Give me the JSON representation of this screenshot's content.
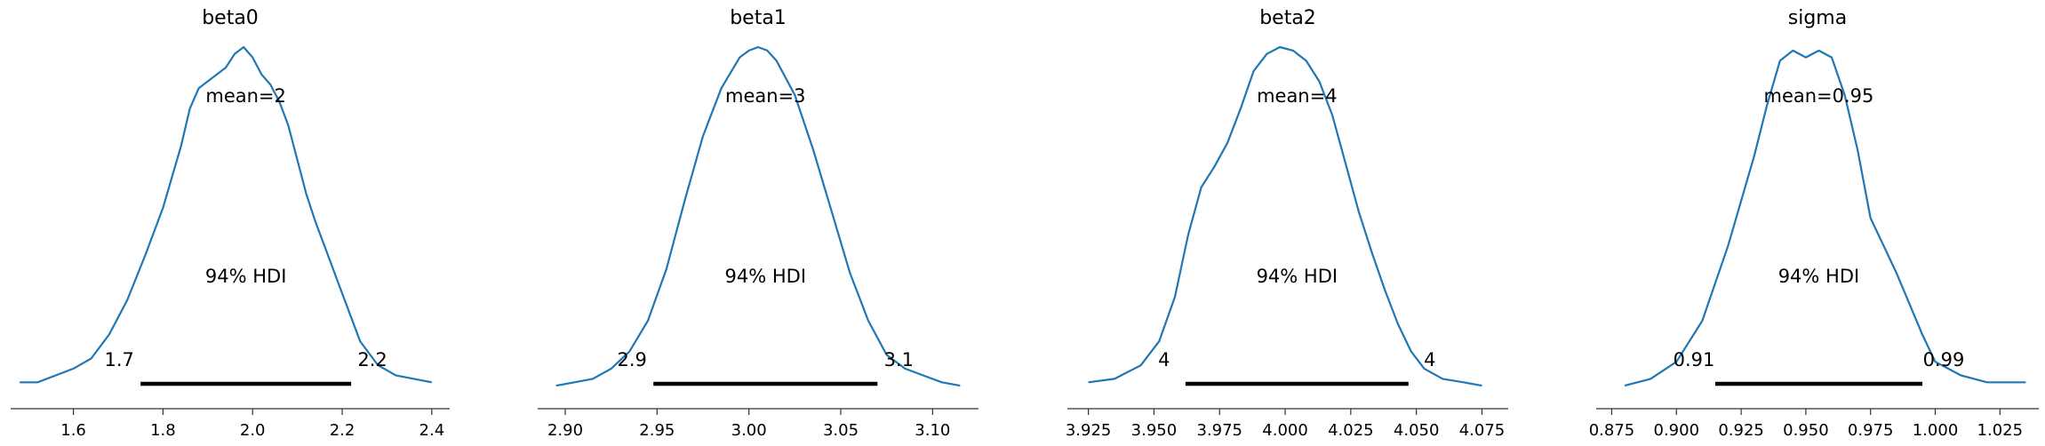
{
  "colors": {
    "density": "#1f77b4",
    "hdi": "#000000",
    "axis": "#333333"
  },
  "chart_data": [
    {
      "type": "line",
      "title": "beta0",
      "xlim": [
        1.46,
        2.44
      ],
      "xticks": [
        1.6,
        1.8,
        2.0,
        2.2,
        2.4
      ],
      "xtick_labels": [
        "1.6",
        "1.8",
        "2.0",
        "2.2",
        "2.4"
      ],
      "mean_label": "mean=2",
      "hdi_label": "94% HDI",
      "hdi": [
        1.75,
        2.22
      ],
      "hdi_low_label": "1.7",
      "hdi_high_label": "2.2",
      "x": [
        1.48,
        1.52,
        1.56,
        1.6,
        1.64,
        1.68,
        1.72,
        1.76,
        1.8,
        1.84,
        1.86,
        1.88,
        1.9,
        1.92,
        1.94,
        1.96,
        1.98,
        2.0,
        2.02,
        2.04,
        2.06,
        2.08,
        2.1,
        2.12,
        2.14,
        2.16,
        2.2,
        2.24,
        2.28,
        2.32,
        2.36,
        2.4
      ],
      "density": [
        0.02,
        0.02,
        0.04,
        0.06,
        0.09,
        0.16,
        0.26,
        0.39,
        0.53,
        0.71,
        0.82,
        0.88,
        0.9,
        0.92,
        0.94,
        0.98,
        1.0,
        0.97,
        0.92,
        0.89,
        0.84,
        0.77,
        0.67,
        0.57,
        0.49,
        0.42,
        0.28,
        0.14,
        0.07,
        0.04,
        0.03,
        0.02
      ]
    },
    {
      "type": "line",
      "title": "beta1",
      "xlim": [
        2.885,
        3.125
      ],
      "xticks": [
        2.9,
        2.95,
        3.0,
        3.05,
        3.1
      ],
      "xtick_labels": [
        "2.90",
        "2.95",
        "3.00",
        "3.05",
        "3.10"
      ],
      "mean_label": "mean=3",
      "hdi_label": "94% HDI",
      "hdi": [
        2.948,
        3.07
      ],
      "hdi_low_label": "2.9",
      "hdi_high_label": "3.1",
      "x": [
        2.895,
        2.905,
        2.915,
        2.925,
        2.935,
        2.945,
        2.955,
        2.965,
        2.975,
        2.985,
        2.995,
        3.0,
        3.005,
        3.01,
        3.015,
        3.025,
        3.035,
        3.045,
        3.055,
        3.065,
        3.075,
        3.085,
        3.095,
        3.105,
        3.115
      ],
      "density": [
        0.01,
        0.02,
        0.03,
        0.06,
        0.11,
        0.2,
        0.35,
        0.55,
        0.74,
        0.88,
        0.97,
        0.99,
        1.0,
        0.99,
        0.96,
        0.86,
        0.7,
        0.52,
        0.34,
        0.2,
        0.1,
        0.06,
        0.04,
        0.02,
        0.01
      ]
    },
    {
      "type": "line",
      "title": "beta2",
      "xlim": [
        3.917,
        4.085
      ],
      "xticks": [
        3.925,
        3.95,
        3.975,
        4.0,
        4.025,
        4.05,
        4.075
      ],
      "xtick_labels": [
        "3.925",
        "3.950",
        "3.975",
        "4.000",
        "4.025",
        "4.050",
        "4.075"
      ],
      "mean_label": "mean=4",
      "hdi_label": "94% HDI",
      "hdi": [
        3.962,
        4.047
      ],
      "hdi_low_label": "4",
      "hdi_high_label": "4",
      "x": [
        3.925,
        3.935,
        3.945,
        3.952,
        3.958,
        3.963,
        3.968,
        3.973,
        3.978,
        3.983,
        3.988,
        3.993,
        3.998,
        4.003,
        4.008,
        4.013,
        4.018,
        4.023,
        4.028,
        4.033,
        4.038,
        4.043,
        4.048,
        4.053,
        4.06,
        4.068,
        4.075
      ],
      "density": [
        0.02,
        0.03,
        0.07,
        0.14,
        0.27,
        0.45,
        0.59,
        0.65,
        0.72,
        0.82,
        0.93,
        0.98,
        1.0,
        0.99,
        0.96,
        0.9,
        0.8,
        0.66,
        0.52,
        0.4,
        0.29,
        0.19,
        0.11,
        0.06,
        0.03,
        0.02,
        0.01
      ]
    },
    {
      "type": "line",
      "title": "sigma",
      "xlim": [
        0.869,
        1.04
      ],
      "xticks": [
        0.875,
        0.9,
        0.925,
        0.95,
        0.975,
        1.0,
        1.025
      ],
      "xtick_labels": [
        "0.875",
        "0.900",
        "0.925",
        "0.950",
        "0.975",
        "1.000",
        "1.025"
      ],
      "mean_label": "mean=0.95",
      "hdi_label": "94% HDI",
      "hdi": [
        0.915,
        0.995
      ],
      "hdi_low_label": "0.91",
      "hdi_high_label": "0.99",
      "x": [
        0.88,
        0.89,
        0.9,
        0.91,
        0.92,
        0.93,
        0.935,
        0.94,
        0.945,
        0.95,
        0.955,
        0.96,
        0.965,
        0.97,
        0.975,
        0.98,
        0.985,
        0.99,
        0.995,
        1.0,
        1.01,
        1.02,
        1.035
      ],
      "density": [
        0.01,
        0.03,
        0.08,
        0.2,
        0.42,
        0.68,
        0.83,
        0.96,
        0.99,
        0.97,
        0.99,
        0.97,
        0.86,
        0.7,
        0.5,
        0.42,
        0.34,
        0.25,
        0.16,
        0.08,
        0.04,
        0.02,
        0.02
      ]
    }
  ]
}
